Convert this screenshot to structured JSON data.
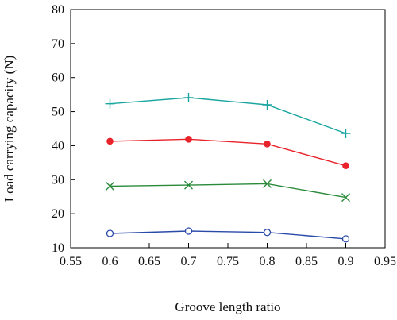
{
  "chart_data": {
    "type": "line",
    "xlabel": "Groove length ratio",
    "ylabel": "Load carrying capacity (N)",
    "xlim": [
      0.55,
      0.95
    ],
    "ylim": [
      10,
      80
    ],
    "x_ticks": [
      "0.55",
      "0.6",
      "0.65",
      "0.7",
      "0.75",
      "0.8",
      "0.85",
      "0.9",
      "0.95"
    ],
    "y_ticks": [
      "10",
      "20",
      "30",
      "40",
      "50",
      "60",
      "70",
      "80"
    ],
    "grid": false,
    "legend": "none",
    "x": [
      0.6,
      0.7,
      0.8,
      0.9
    ],
    "series": [
      {
        "marker": "plus",
        "color": "#1aa6a0",
        "values": [
          52.3,
          54.1,
          52.0,
          43.6
        ]
      },
      {
        "marker": "filled-circle",
        "color": "#e8232a",
        "values": [
          41.3,
          41.9,
          40.5,
          34.1
        ]
      },
      {
        "marker": "x",
        "color": "#2a8a3a",
        "values": [
          28.1,
          28.4,
          28.8,
          24.8
        ]
      },
      {
        "marker": "open-circle",
        "color": "#2a4aa8",
        "values": [
          14.2,
          14.9,
          14.5,
          12.6
        ]
      }
    ]
  }
}
